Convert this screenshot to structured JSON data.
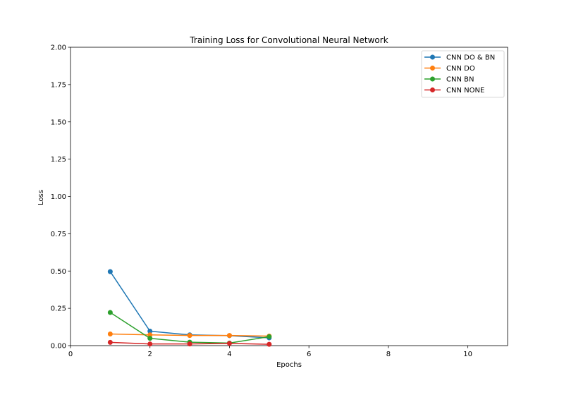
{
  "chart_data": {
    "type": "line",
    "title": "Training Loss for Convolutional Neural Network",
    "xlabel": "Epochs",
    "ylabel": "Loss",
    "xlim": [
      0,
      11
    ],
    "ylim": [
      0,
      2
    ],
    "xticks": [
      "0",
      "2",
      "4",
      "6",
      "8",
      "10"
    ],
    "yticks": [
      "0.00",
      "0.25",
      "0.50",
      "0.75",
      "1.00",
      "1.25",
      "1.50",
      "1.75",
      "2.00"
    ],
    "grid": false,
    "legend_position": "top-right",
    "x": [
      1,
      2,
      3,
      4,
      5
    ],
    "series": [
      {
        "name": "CNN DO & BN",
        "color": "#1f77b4",
        "values": [
          0.496,
          0.097,
          0.072,
          0.067,
          0.052
        ]
      },
      {
        "name": "CNN DO",
        "color": "#ff7f0e",
        "values": [
          0.078,
          0.072,
          0.068,
          0.068,
          0.064
        ]
      },
      {
        "name": "CNN BN",
        "color": "#2ca02c",
        "values": [
          0.222,
          0.049,
          0.023,
          0.017,
          0.06
        ]
      },
      {
        "name": "CNN NONE",
        "color": "#d62728",
        "values": [
          0.022,
          0.011,
          0.011,
          0.015,
          0.009
        ]
      }
    ]
  }
}
